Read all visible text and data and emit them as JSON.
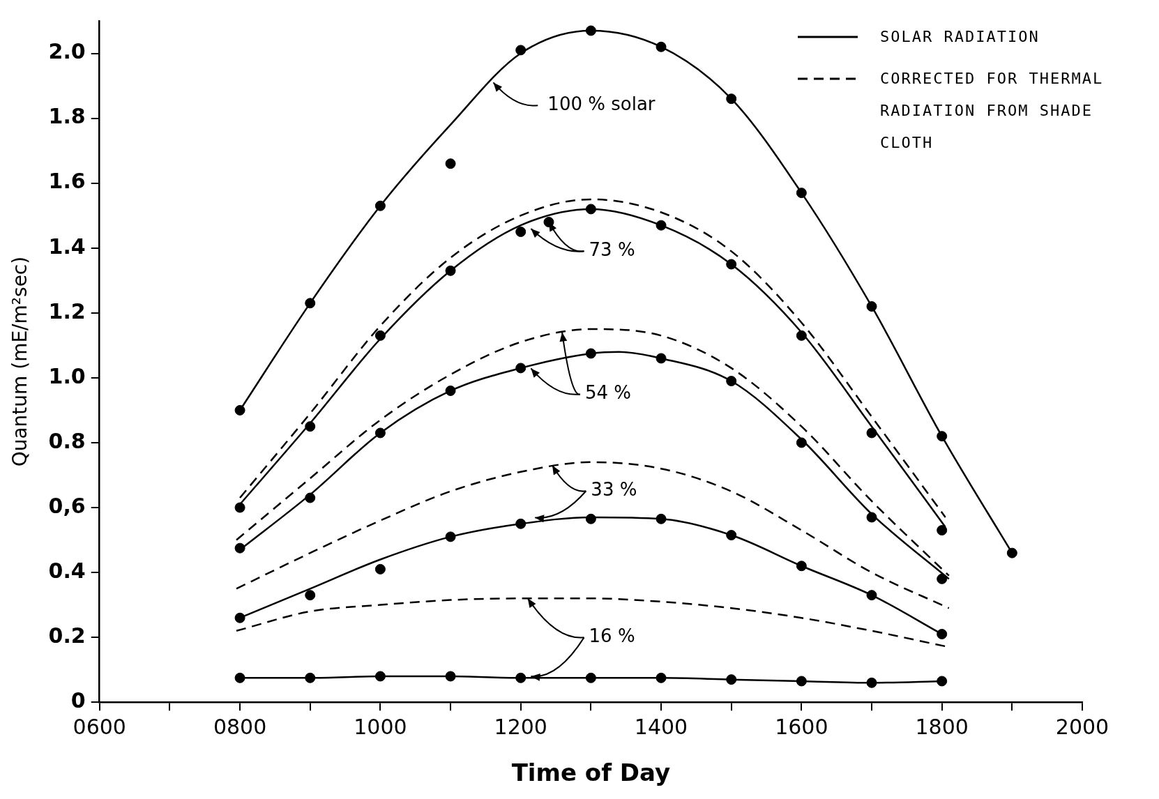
{
  "chart_data": {
    "type": "line",
    "xlabel": "Time of Day",
    "ylabel": "Quantum (mE/m²sec)",
    "xlim": [
      600,
      2000
    ],
    "xticks": [
      {
        "value": 600,
        "label": "0600"
      },
      {
        "value": 700,
        "label": null
      },
      {
        "value": 800,
        "label": "0800"
      },
      {
        "value": 900,
        "label": null
      },
      1000,
      {
        "value": 1100,
        "label": null
      },
      1200,
      {
        "value": 1300,
        "label": null
      },
      1400,
      {
        "value": 1500,
        "label": null
      },
      1600,
      {
        "value": 1700,
        "label": null
      },
      1800,
      {
        "value": 1900,
        "label": null
      },
      2000
    ],
    "ylim": [
      0,
      2.1
    ],
    "yticks": [
      0,
      0.2,
      {
        "value": 0.4,
        "label": "0.4"
      },
      {
        "value": 0.6,
        "label": "0,6"
      },
      0.8,
      {
        "value": 1,
        "label": "1.0"
      },
      1.2,
      1.4,
      1.6,
      1.8,
      {
        "value": 2,
        "label": "2.0"
      }
    ],
    "grid": false,
    "legend": "top right",
    "marker": "circle",
    "series": [
      {
        "name": "SOLAR RADIATION",
        "color": "#000000",
        "line_style": "solid",
        "marker": "none",
        "x": [
          800,
          900,
          1000,
          1100,
          1200,
          1300,
          1400,
          1500,
          1600,
          1700,
          1800,
          1900
        ],
        "values": [
          0.9,
          1.23,
          1.53,
          1.78,
          2.0,
          2.07,
          2.02,
          1.86,
          1.57,
          1.22,
          0.82,
          0.46
        ]
      },
      {
        "name": "CORRECTED FOR THERMAL RADIATION FROM SHADE CLOTH",
        "color": "#000000",
        "line_style": "dashed",
        "marker": "none",
        "x": [
          800,
          900,
          1000,
          1100,
          1200,
          1300,
          1400,
          1500,
          1600,
          1700,
          1805
        ],
        "values": [
          0.63,
          0.89,
          1.16,
          1.37,
          1.5,
          1.55,
          1.51,
          1.39,
          1.17,
          0.88,
          0.57
        ]
      },
      {
        "color": "#000000",
        "line_style": "solid",
        "marker": "none",
        "x": [
          800,
          900,
          1000,
          1100,
          1200,
          1300,
          1400,
          1500,
          1600,
          1700,
          1805
        ],
        "values": [
          0.61,
          0.86,
          1.12,
          1.33,
          1.47,
          1.52,
          1.47,
          1.35,
          1.14,
          0.85,
          0.54
        ]
      },
      {
        "color": "#000000",
        "line_style": "dashed",
        "marker": "none",
        "x": [
          795,
          900,
          1000,
          1100,
          1200,
          1300,
          1400,
          1500,
          1600,
          1700,
          1810
        ],
        "values": [
          0.5,
          0.69,
          0.87,
          1.01,
          1.11,
          1.15,
          1.13,
          1.03,
          0.85,
          0.62,
          0.39
        ]
      },
      {
        "color": "#000000",
        "line_style": "solid",
        "marker": "none",
        "x": [
          800,
          900,
          1000,
          1100,
          1200,
          1300,
          1340,
          1400,
          1500,
          1600,
          1700,
          1810
        ],
        "values": [
          0.47,
          0.64,
          0.83,
          0.96,
          1.03,
          1.075,
          1.08,
          1.06,
          0.99,
          0.81,
          0.58,
          0.38
        ]
      },
      {
        "color": "#000000",
        "line_style": "dashed",
        "marker": "none",
        "x": [
          795,
          900,
          1000,
          1100,
          1200,
          1300,
          1400,
          1500,
          1600,
          1700,
          1810
        ],
        "values": [
          0.35,
          0.46,
          0.56,
          0.65,
          0.71,
          0.74,
          0.72,
          0.65,
          0.53,
          0.4,
          0.29
        ]
      },
      {
        "color": "#000000",
        "line_style": "solid",
        "marker": "none",
        "x": [
          800,
          900,
          1000,
          1100,
          1200,
          1300,
          1400,
          1500,
          1600,
          1700,
          1800
        ],
        "values": [
          0.26,
          0.35,
          0.44,
          0.51,
          0.55,
          0.57,
          0.565,
          0.515,
          0.42,
          0.33,
          0.21
        ]
      },
      {
        "color": "#000000",
        "line_style": "dashed",
        "marker": "none",
        "x": [
          795,
          900,
          1000,
          1100,
          1200,
          1300,
          1400,
          1500,
          1600,
          1700,
          1810
        ],
        "values": [
          0.22,
          0.28,
          0.3,
          0.315,
          0.32,
          0.32,
          0.31,
          0.29,
          0.26,
          0.22,
          0.17
        ]
      },
      {
        "color": "#000000",
        "line_style": "solid",
        "marker": "none",
        "x": [
          800,
          900,
          1000,
          1100,
          1200,
          1300,
          1400,
          1500,
          1600,
          1700,
          1800
        ],
        "values": [
          0.075,
          0.075,
          0.08,
          0.08,
          0.075,
          0.075,
          0.075,
          0.07,
          0.065,
          0.06,
          0.065
        ]
      },
      {
        "type": "scatter",
        "color": "#000000",
        "x": [
          800,
          900,
          1000,
          1100,
          1200,
          1300,
          1400,
          1500,
          1600,
          1700,
          1800,
          1900
        ],
        "values": [
          0.9,
          1.23,
          1.53,
          1.66,
          2.01,
          2.07,
          2.02,
          1.86,
          1.57,
          1.22,
          0.82,
          0.46
        ]
      },
      {
        "type": "scatter",
        "color": "#000000",
        "x": [
          800,
          900,
          1000,
          1100,
          1200,
          1240,
          1300,
          1400,
          1500,
          1600,
          1700,
          1800
        ],
        "values": [
          0.6,
          0.85,
          1.13,
          1.33,
          1.45,
          1.48,
          1.52,
          1.47,
          1.35,
          1.13,
          0.83,
          0.53
        ]
      },
      {
        "type": "scatter",
        "color": "#000000",
        "x": [
          800,
          900,
          1000,
          1100,
          1200,
          1300,
          1400,
          1500,
          1600,
          1700,
          1800
        ],
        "values": [
          0.475,
          0.63,
          0.83,
          0.96,
          1.03,
          1.075,
          1.06,
          0.99,
          0.8,
          0.57,
          0.38
        ]
      },
      {
        "type": "scatter",
        "color": "#000000",
        "x": [
          800,
          900,
          1000,
          1100,
          1200,
          1300,
          1400,
          1500,
          1600,
          1700,
          1800
        ],
        "values": [
          0.26,
          0.33,
          0.41,
          0.51,
          0.55,
          0.565,
          0.565,
          0.515,
          0.42,
          0.33,
          0.21
        ]
      },
      {
        "type": "scatter",
        "color": "#000000",
        "x": [
          800,
          900,
          1000,
          1100,
          1200,
          1300,
          1400,
          1500,
          1600,
          1700,
          1800
        ],
        "values": [
          0.075,
          0.075,
          0.08,
          0.08,
          0.075,
          0.075,
          0.075,
          0.07,
          0.065,
          0.06,
          0.065
        ]
      }
    ],
    "annotations": [
      {
        "text": "100 % solar",
        "x": 1161,
        "y": 1.91
      },
      {
        "text": "73 %",
        "x": 1240,
        "y": 1.48
      },
      {
        "text": "54 %",
        "x": 1259,
        "y": 1.14
      },
      {
        "text": "33 %",
        "x": 1245,
        "y": 0.73
      },
      {
        "text": "16 %",
        "x": 1210,
        "y": 0.32
      }
    ]
  }
}
